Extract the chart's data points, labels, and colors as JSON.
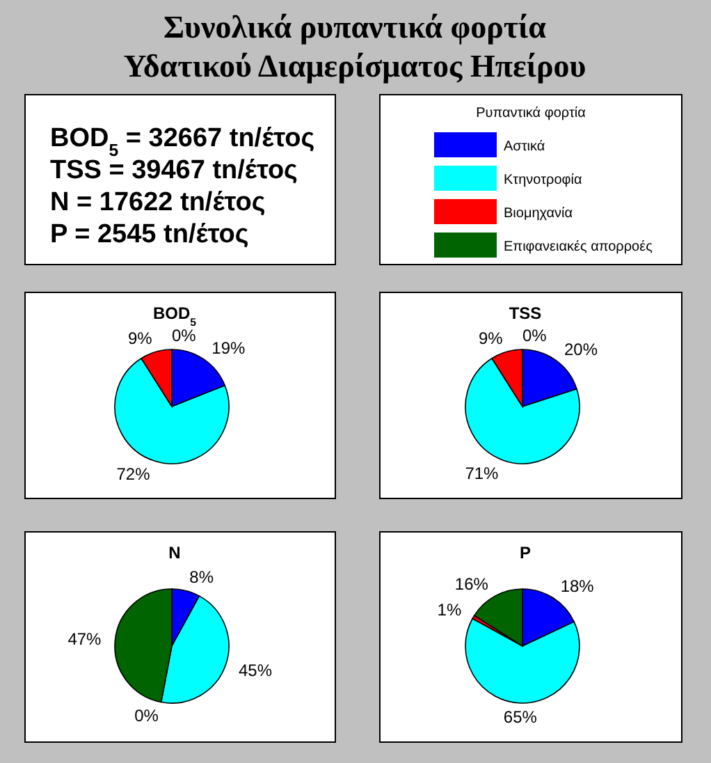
{
  "chart_data": [
    {
      "type": "other",
      "title": "Συνολικά ρυπαντικά φορτία",
      "subtitle": "Υδατικού Διαμερίσματος Ηπείρου",
      "annotations": [
        "BOD$_{5}$ = 32667 tn/έτος",
        "TSS = 39467 tn/έτος",
        "N = 17622 tn/έτος",
        "P = 2545 tn/έτος"
      ]
    },
    {
      "type": "pie",
      "title": "BOD$_{5}$",
      "categories": [
        "Αστικά",
        "Κτηνοτροφία",
        "Βιομηχανία",
        "Επιφανειακές απορροές"
      ],
      "values": [
        19,
        72,
        9,
        0
      ],
      "value_labels": [
        "19%",
        "72%",
        "9%",
        "0%"
      ],
      "colors": [
        "#0000ff",
        "#00ffff",
        "#ff0000",
        "#006400"
      ],
      "legend": "top right",
      "legend_title": "Ρυπαντικά φορτία"
    },
    {
      "type": "pie",
      "title": "TSS",
      "categories": [
        null,
        null,
        null,
        null
      ],
      "values": [
        20,
        71,
        9,
        0
      ],
      "value_labels": [
        "20%",
        "71%",
        "9%",
        "0%"
      ],
      "colors": [
        "#0000ff",
        "#00ffff",
        "#ff0000",
        "#006400"
      ]
    },
    {
      "type": "pie",
      "title": "N",
      "categories": [
        null,
        null,
        null,
        null
      ],
      "values": [
        8,
        45,
        0,
        47
      ],
      "value_labels": [
        "8%",
        "45%",
        "0%",
        "47%"
      ],
      "colors": [
        "#0000ff",
        "#00ffff",
        "#ff0000",
        "#006400"
      ]
    },
    {
      "type": "pie",
      "title": "P",
      "categories": [
        null,
        null,
        null,
        null
      ],
      "values": [
        18,
        65,
        1,
        16
      ],
      "value_labels": [
        "18%",
        "65%",
        "1%",
        "16%"
      ],
      "colors": [
        "#0000ff",
        "#00ffff",
        "#ff0000",
        "#006400"
      ]
    }
  ]
}
